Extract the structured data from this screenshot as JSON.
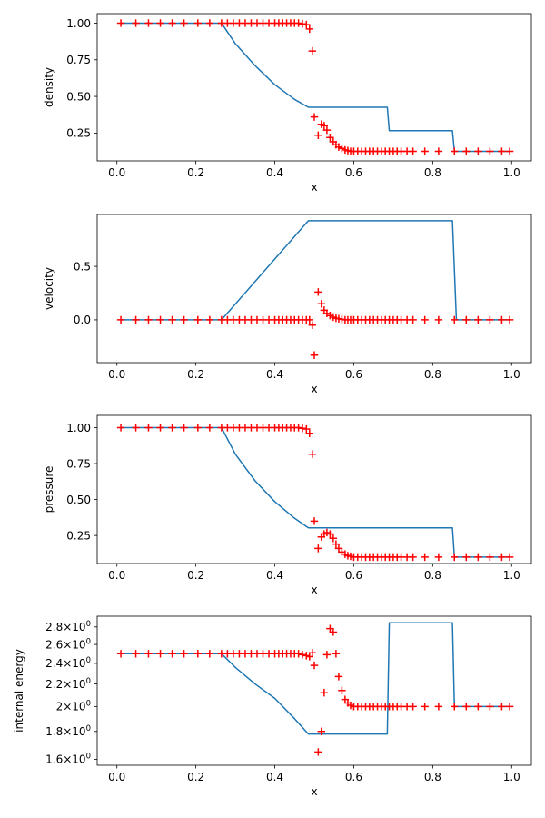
{
  "colors": {
    "exact": "#1f77b4",
    "numerical": "#ff0000",
    "axes": "#000000"
  },
  "chart_data": [
    {
      "type": "line",
      "xlabel": "x",
      "ylabel": "density",
      "xlim": [
        -0.05,
        1.05
      ],
      "ylim": [
        0.06,
        1.065
      ],
      "yscale": "linear",
      "xticks": [
        0.0,
        0.2,
        0.4,
        0.6,
        0.8,
        1.0
      ],
      "xtick_labels": [
        "0.0",
        "0.2",
        "0.4",
        "0.6",
        "0.8",
        "1.0"
      ],
      "yticks": [
        0.25,
        0.5,
        0.75,
        1.0
      ],
      "ytick_labels": [
        "0.25",
        "0.50",
        "0.75",
        "1.00"
      ],
      "grid": false,
      "series": [
        {
          "kind": "line",
          "color": "#1f77b4",
          "x": [
            0.01,
            0.265,
            0.3,
            0.35,
            0.4,
            0.45,
            0.485,
            0.685,
            0.69,
            0.85,
            0.855,
            0.995
          ],
          "y": [
            1.0,
            1.0,
            0.86,
            0.71,
            0.58,
            0.48,
            0.426,
            0.426,
            0.266,
            0.266,
            0.125,
            0.125
          ]
        },
        {
          "kind": "scatter",
          "marker": "+",
          "color": "#ff0000",
          "x": [
            0.01,
            0.048,
            0.08,
            0.11,
            0.14,
            0.17,
            0.205,
            0.235,
            0.265,
            0.28,
            0.295,
            0.31,
            0.325,
            0.34,
            0.355,
            0.37,
            0.385,
            0.4,
            0.41,
            0.42,
            0.43,
            0.44,
            0.45,
            0.46,
            0.47,
            0.48,
            0.488,
            0.495,
            0.5,
            0.51,
            0.518,
            0.525,
            0.532,
            0.54,
            0.548,
            0.555,
            0.562,
            0.57,
            0.578,
            0.585,
            0.592,
            0.6,
            0.61,
            0.62,
            0.63,
            0.64,
            0.65,
            0.66,
            0.67,
            0.68,
            0.69,
            0.7,
            0.71,
            0.72,
            0.735,
            0.75,
            0.78,
            0.815,
            0.855,
            0.885,
            0.915,
            0.945,
            0.975,
            0.995
          ],
          "y": [
            1.0,
            1.0,
            1.0,
            1.0,
            1.0,
            1.0,
            1.0,
            1.0,
            1.0,
            1.0,
            1.0,
            1.0,
            1.0,
            1.0,
            1.0,
            1.0,
            1.0,
            1.0,
            1.0,
            1.0,
            1.0,
            1.0,
            1.0,
            1.0,
            0.995,
            0.99,
            0.96,
            0.81,
            0.36,
            0.235,
            0.31,
            0.3,
            0.27,
            0.22,
            0.19,
            0.17,
            0.155,
            0.145,
            0.135,
            0.13,
            0.125,
            0.125,
            0.125,
            0.125,
            0.125,
            0.125,
            0.125,
            0.125,
            0.125,
            0.125,
            0.125,
            0.125,
            0.125,
            0.125,
            0.125,
            0.125,
            0.125,
            0.125,
            0.125,
            0.125,
            0.125,
            0.125,
            0.125,
            0.125
          ]
        }
      ]
    },
    {
      "type": "line",
      "xlabel": "x",
      "ylabel": "velocity",
      "xlim": [
        -0.05,
        1.05
      ],
      "ylim": [
        -0.4,
        0.985
      ],
      "yscale": "linear",
      "xticks": [
        0.0,
        0.2,
        0.4,
        0.6,
        0.8,
        1.0
      ],
      "xtick_labels": [
        "0.0",
        "0.2",
        "0.4",
        "0.6",
        "0.8",
        "1.0"
      ],
      "yticks": [
        0.0,
        0.5
      ],
      "ytick_labels": [
        "0.0",
        "0.5"
      ],
      "grid": false,
      "series": [
        {
          "kind": "line",
          "color": "#1f77b4",
          "x": [
            0.01,
            0.265,
            0.485,
            0.85,
            0.86,
            0.995
          ],
          "y": [
            0.0,
            0.0,
            0.927,
            0.927,
            0.0,
            0.0
          ]
        },
        {
          "kind": "scatter",
          "marker": "+",
          "color": "#ff0000",
          "x": [
            0.01,
            0.048,
            0.08,
            0.11,
            0.14,
            0.17,
            0.205,
            0.235,
            0.265,
            0.28,
            0.295,
            0.31,
            0.325,
            0.34,
            0.355,
            0.37,
            0.385,
            0.4,
            0.41,
            0.42,
            0.43,
            0.44,
            0.45,
            0.46,
            0.47,
            0.48,
            0.488,
            0.495,
            0.5,
            0.51,
            0.518,
            0.525,
            0.532,
            0.54,
            0.548,
            0.555,
            0.562,
            0.57,
            0.578,
            0.585,
            0.592,
            0.6,
            0.61,
            0.62,
            0.63,
            0.64,
            0.65,
            0.66,
            0.67,
            0.68,
            0.69,
            0.7,
            0.71,
            0.72,
            0.735,
            0.75,
            0.78,
            0.815,
            0.855,
            0.885,
            0.915,
            0.945,
            0.975,
            0.995
          ],
          "y": [
            0.0,
            0.0,
            0.0,
            0.0,
            0.0,
            0.0,
            0.0,
            0.0,
            0.0,
            0.0,
            0.0,
            0.0,
            0.0,
            0.0,
            0.0,
            0.0,
            0.0,
            0.0,
            0.0,
            0.0,
            0.0,
            0.0,
            0.0,
            0.0,
            0.0,
            0.0,
            0.0,
            -0.05,
            -0.33,
            0.26,
            0.15,
            0.09,
            0.06,
            0.04,
            0.025,
            0.015,
            0.01,
            0.005,
            0.0,
            0.0,
            0.0,
            0.0,
            0.0,
            0.0,
            0.0,
            0.0,
            0.0,
            0.0,
            0.0,
            0.0,
            0.0,
            0.0,
            0.0,
            0.0,
            0.0,
            0.0,
            0.0,
            0.0,
            0.0,
            0.0,
            0.0,
            0.0,
            0.0,
            0.0
          ]
        }
      ]
    },
    {
      "type": "line",
      "xlabel": "x",
      "ylabel": "pressure",
      "xlim": [
        -0.05,
        1.05
      ],
      "ylim": [
        0.055,
        1.085
      ],
      "yscale": "linear",
      "xticks": [
        0.0,
        0.2,
        0.4,
        0.6,
        0.8,
        1.0
      ],
      "xtick_labels": [
        "0.0",
        "0.2",
        "0.4",
        "0.6",
        "0.8",
        "1.0"
      ],
      "yticks": [
        0.25,
        0.5,
        0.75,
        1.0
      ],
      "ytick_labels": [
        "0.25",
        "0.50",
        "0.75",
        "1.00"
      ],
      "grid": false,
      "series": [
        {
          "kind": "line",
          "color": "#1f77b4",
          "x": [
            0.01,
            0.265,
            0.3,
            0.35,
            0.4,
            0.45,
            0.485,
            0.85,
            0.855,
            0.995
          ],
          "y": [
            1.0,
            1.0,
            0.815,
            0.63,
            0.485,
            0.37,
            0.303,
            0.303,
            0.1,
            0.1
          ]
        },
        {
          "kind": "scatter",
          "marker": "+",
          "color": "#ff0000",
          "x": [
            0.01,
            0.048,
            0.08,
            0.11,
            0.14,
            0.17,
            0.205,
            0.235,
            0.265,
            0.28,
            0.295,
            0.31,
            0.325,
            0.34,
            0.355,
            0.37,
            0.385,
            0.4,
            0.41,
            0.42,
            0.43,
            0.44,
            0.45,
            0.46,
            0.47,
            0.48,
            0.488,
            0.495,
            0.5,
            0.51,
            0.518,
            0.525,
            0.532,
            0.54,
            0.548,
            0.555,
            0.562,
            0.57,
            0.578,
            0.585,
            0.592,
            0.6,
            0.61,
            0.62,
            0.63,
            0.64,
            0.65,
            0.66,
            0.67,
            0.68,
            0.69,
            0.7,
            0.71,
            0.72,
            0.735,
            0.75,
            0.78,
            0.815,
            0.855,
            0.885,
            0.915,
            0.945,
            0.975,
            0.995
          ],
          "y": [
            1.0,
            1.0,
            1.0,
            1.0,
            1.0,
            1.0,
            1.0,
            1.0,
            1.0,
            1.0,
            1.0,
            1.0,
            1.0,
            1.0,
            1.0,
            1.0,
            1.0,
            1.0,
            1.0,
            1.0,
            1.0,
            1.0,
            1.0,
            1.0,
            0.995,
            0.99,
            0.96,
            0.815,
            0.35,
            0.16,
            0.24,
            0.26,
            0.27,
            0.26,
            0.23,
            0.19,
            0.16,
            0.135,
            0.12,
            0.11,
            0.105,
            0.1,
            0.1,
            0.1,
            0.1,
            0.1,
            0.1,
            0.1,
            0.1,
            0.1,
            0.1,
            0.1,
            0.1,
            0.1,
            0.1,
            0.1,
            0.1,
            0.1,
            0.1,
            0.1,
            0.1,
            0.1,
            0.1,
            0.1
          ]
        }
      ]
    },
    {
      "type": "line",
      "xlabel": "x",
      "ylabel": "internal energy",
      "xlim": [
        -0.05,
        1.05
      ],
      "ylim": [
        1.56,
        2.93
      ],
      "yscale": "log",
      "xticks": [
        0.0,
        0.2,
        0.4,
        0.6,
        0.8,
        1.0
      ],
      "xtick_labels": [
        "0.0",
        "0.2",
        "0.4",
        "0.6",
        "0.8",
        "1.0"
      ],
      "yticks": [
        1.6,
        1.8,
        2.0,
        2.2,
        2.4,
        2.6,
        2.8
      ],
      "ytick_labels": [
        {
          "mantissa": "1.6",
          "base": "10",
          "exp": "0"
        },
        {
          "mantissa": "1.8",
          "base": "10",
          "exp": "0"
        },
        {
          "mantissa": "2",
          "base": "10",
          "exp": "0"
        },
        {
          "mantissa": "2.2",
          "base": "10",
          "exp": "0"
        },
        {
          "mantissa": "2.4",
          "base": "10",
          "exp": "0"
        },
        {
          "mantissa": "2.6",
          "base": "10",
          "exp": "0"
        },
        {
          "mantissa": "2.8",
          "base": "10",
          "exp": "0"
        }
      ],
      "grid": false,
      "series": [
        {
          "kind": "line",
          "color": "#1f77b4",
          "x": [
            0.01,
            0.265,
            0.3,
            0.35,
            0.4,
            0.45,
            0.485,
            0.685,
            0.69,
            0.85,
            0.855,
            0.995
          ],
          "y": [
            2.5,
            2.5,
            2.36,
            2.2,
            2.07,
            1.9,
            1.78,
            1.78,
            2.85,
            2.85,
            2.0,
            2.0
          ]
        },
        {
          "kind": "scatter",
          "marker": "+",
          "color": "#ff0000",
          "x": [
            0.01,
            0.048,
            0.08,
            0.11,
            0.14,
            0.17,
            0.205,
            0.235,
            0.265,
            0.28,
            0.295,
            0.31,
            0.325,
            0.34,
            0.355,
            0.37,
            0.385,
            0.4,
            0.41,
            0.42,
            0.43,
            0.44,
            0.45,
            0.46,
            0.47,
            0.48,
            0.488,
            0.495,
            0.5,
            0.51,
            0.518,
            0.525,
            0.532,
            0.54,
            0.548,
            0.555,
            0.562,
            0.57,
            0.578,
            0.585,
            0.592,
            0.6,
            0.61,
            0.62,
            0.63,
            0.64,
            0.65,
            0.66,
            0.67,
            0.68,
            0.69,
            0.7,
            0.71,
            0.72,
            0.735,
            0.75,
            0.78,
            0.815,
            0.855,
            0.885,
            0.915,
            0.945,
            0.975,
            0.995
          ],
          "y": [
            2.5,
            2.5,
            2.5,
            2.5,
            2.5,
            2.5,
            2.5,
            2.5,
            2.5,
            2.5,
            2.5,
            2.5,
            2.5,
            2.5,
            2.5,
            2.5,
            2.5,
            2.5,
            2.5,
            2.5,
            2.5,
            2.5,
            2.5,
            2.5,
            2.49,
            2.48,
            2.47,
            2.51,
            2.38,
            1.65,
            1.8,
            2.12,
            2.49,
            2.78,
            2.74,
            2.5,
            2.27,
            2.14,
            2.06,
            2.03,
            2.01,
            2.0,
            2.0,
            2.0,
            2.0,
            2.0,
            2.0,
            2.0,
            2.0,
            2.0,
            2.0,
            2.0,
            2.0,
            2.0,
            2.0,
            2.0,
            2.0,
            2.0,
            2.0,
            2.0,
            2.0,
            2.0,
            2.0,
            2.0
          ]
        }
      ]
    }
  ]
}
